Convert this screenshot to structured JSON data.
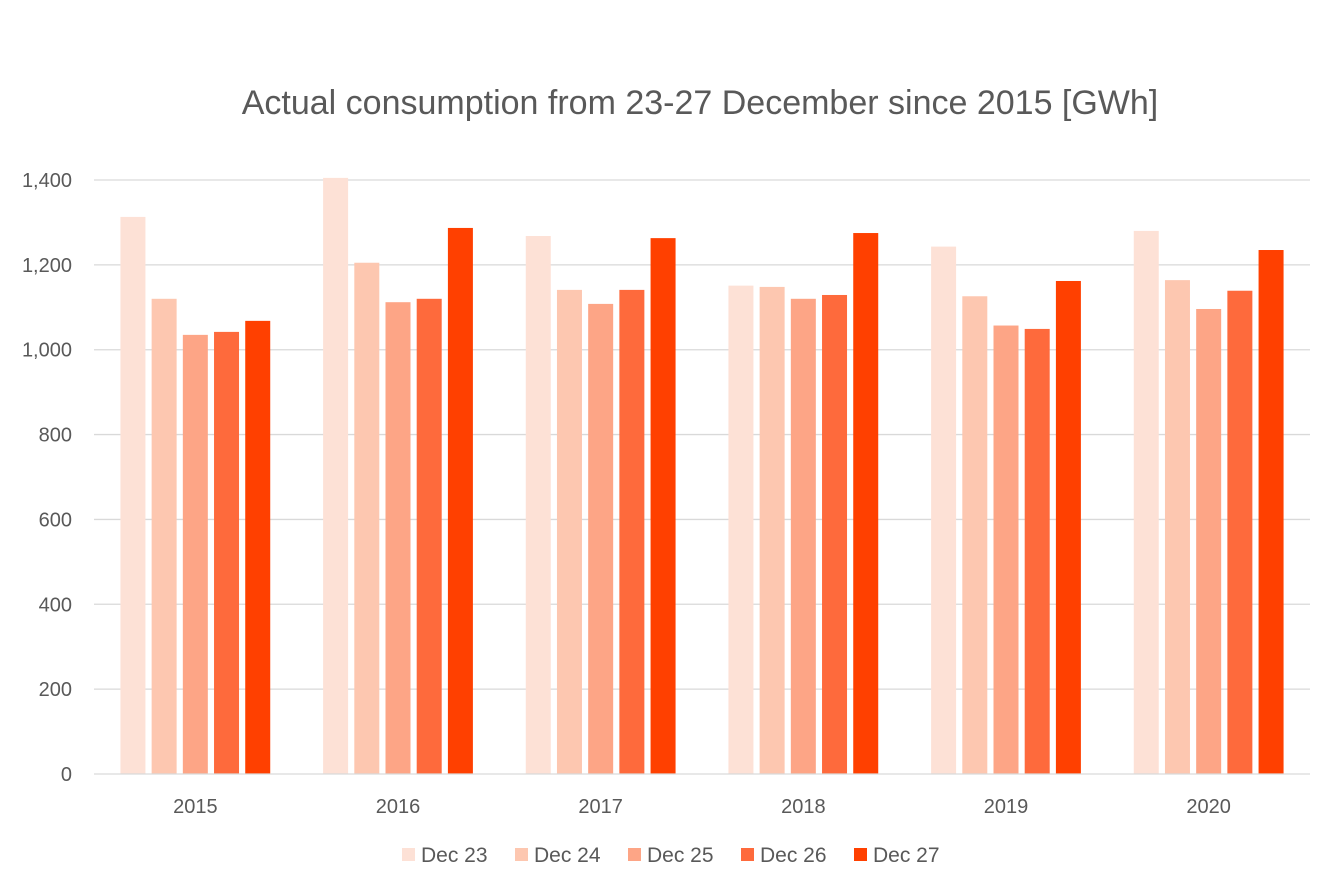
{
  "chart_data": {
    "type": "bar",
    "title": "Actual consumption from 23-27 December since 2015 [GWh]",
    "xlabel": "",
    "ylabel": "",
    "categories": [
      "2015",
      "2016",
      "2017",
      "2018",
      "2019",
      "2020"
    ],
    "ylim": [
      0,
      1400
    ],
    "yticks": [
      0,
      200,
      400,
      600,
      800,
      1000,
      1200,
      1400
    ],
    "ytick_labels": [
      "0",
      "200",
      "400",
      "600",
      "800",
      "1,000",
      "1,200",
      "1,400"
    ],
    "grid": true,
    "legend_position": "bottom",
    "series": [
      {
        "name": "Dec 23",
        "color": "#fde1d6",
        "values": [
          1313,
          1405,
          1268,
          1151,
          1243,
          1280
        ]
      },
      {
        "name": "Dec 24",
        "color": "#fdc7b0",
        "values": [
          1120,
          1205,
          1141,
          1148,
          1126,
          1164
        ]
      },
      {
        "name": "Dec 25",
        "color": "#fda586",
        "values": [
          1035,
          1112,
          1108,
          1120,
          1057,
          1096
        ]
      },
      {
        "name": "Dec 26",
        "color": "#fe6a3c",
        "values": [
          1042,
          1120,
          1141,
          1129,
          1049,
          1139
        ]
      },
      {
        "name": "Dec 27",
        "color": "#ff4000",
        "values": [
          1068,
          1287,
          1263,
          1275,
          1162,
          1235
        ]
      }
    ]
  }
}
